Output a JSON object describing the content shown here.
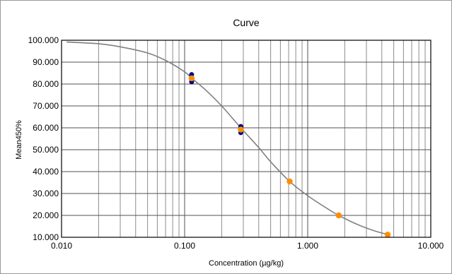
{
  "chart_data": {
    "type": "scatter",
    "title": "Curve",
    "xlabel": "Concentration (µg/kg)",
    "ylabel": "Mean450%",
    "xscale": "log",
    "xlim": [
      0.01,
      10
    ],
    "ylim": [
      10,
      100
    ],
    "grid": true,
    "legend": "none",
    "x_ticks": [
      {
        "value": 0.01,
        "label": "0.010"
      },
      {
        "value": 0.1,
        "label": "0.100"
      },
      {
        "value": 1,
        "label": "1.000"
      },
      {
        "value": 10,
        "label": "10.000"
      }
    ],
    "y_ticks": [
      {
        "value": 10,
        "label": "10.000"
      },
      {
        "value": 20,
        "label": "20.000"
      },
      {
        "value": 30,
        "label": "30.000"
      },
      {
        "value": 40,
        "label": "40.000"
      },
      {
        "value": 50,
        "label": "50.000"
      },
      {
        "value": 60,
        "label": "60.000"
      },
      {
        "value": 70,
        "label": "70.000"
      },
      {
        "value": 80,
        "label": "80.000"
      },
      {
        "value": 90,
        "label": "90.000"
      },
      {
        "value": 100,
        "label": "100.000"
      }
    ],
    "fit_curve": {
      "color": "#808080",
      "points": [
        {
          "x": 0.011,
          "y": 99.2
        },
        {
          "x": 0.02,
          "y": 98.4
        },
        {
          "x": 0.03,
          "y": 97.0
        },
        {
          "x": 0.05,
          "y": 94.2
        },
        {
          "x": 0.07,
          "y": 90.8
        },
        {
          "x": 0.1,
          "y": 85.6
        },
        {
          "x": 0.114,
          "y": 82.7
        },
        {
          "x": 0.15,
          "y": 77.0
        },
        {
          "x": 0.2,
          "y": 70.0
        },
        {
          "x": 0.286,
          "y": 60.0
        },
        {
          "x": 0.4,
          "y": 51.0
        },
        {
          "x": 0.5,
          "y": 44.5
        },
        {
          "x": 0.714,
          "y": 35.5
        },
        {
          "x": 1.0,
          "y": 29.0
        },
        {
          "x": 1.5,
          "y": 22.5
        },
        {
          "x": 1.786,
          "y": 20.0
        },
        {
          "x": 2.5,
          "y": 16.0
        },
        {
          "x": 3.5,
          "y": 12.9
        },
        {
          "x": 4.464,
          "y": 11.3
        }
      ]
    },
    "series": [
      {
        "color": "#00008b",
        "points": [
          {
            "x": 0.114,
            "y": 84.3
          },
          {
            "x": 0.114,
            "y": 81.0
          },
          {
            "x": 0.286,
            "y": 60.6
          },
          {
            "x": 0.286,
            "y": 57.8
          }
        ]
      },
      {
        "color": "#ff8c00",
        "points": [
          {
            "x": 0.114,
            "y": 82.6
          },
          {
            "x": 0.286,
            "y": 59.2
          },
          {
            "x": 0.714,
            "y": 35.5
          },
          {
            "x": 1.786,
            "y": 20.0
          },
          {
            "x": 4.464,
            "y": 11.2
          }
        ]
      }
    ]
  }
}
